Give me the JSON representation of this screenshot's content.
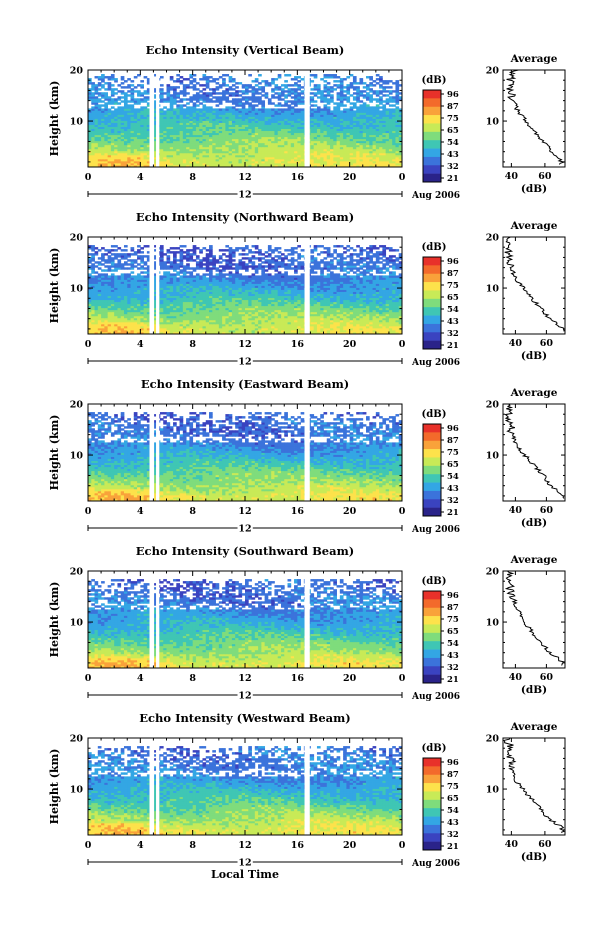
{
  "ylabel": "Height (km)",
  "xlabel": "Local Time",
  "date_label": "Aug 2006",
  "colorbar": {
    "unit_label": "(dB)",
    "tick_labels": [
      "96",
      "87",
      "75",
      "65",
      "54",
      "43",
      "32",
      "21"
    ],
    "colors": [
      "#e8312a",
      "#f36a2b",
      "#f9a23a",
      "#fde24b",
      "#c8ea57",
      "#7fdc7c",
      "#3fc6b4",
      "#33a6e4",
      "#3b73db",
      "#3a43c0",
      "#2a2389"
    ]
  },
  "profile_title": "Average",
  "profile_xlabel": "(dB)",
  "x_ticks": [
    "0",
    "4",
    "8",
    "12",
    "16",
    "20",
    "0"
  ],
  "y_ticks": [
    "20",
    "10"
  ],
  "panels": [
    {
      "title": "Echo Intensity (Vertical Beam)",
      "day_label": "12",
      "profile_ticks": [
        "40",
        "60"
      ]
    },
    {
      "title": "Echo Intensity (Northward Beam)",
      "day_label": "12",
      "profile_ticks": [
        "40",
        "60"
      ]
    },
    {
      "title": "Echo Intensity (Eastward Beam)",
      "day_label": "12",
      "profile_ticks": [
        "40",
        "60"
      ]
    },
    {
      "title": "Echo Intensity (Southward Beam)",
      "day_label": "12",
      "profile_ticks": [
        "40",
        "60"
      ]
    },
    {
      "title": "Echo Intensity (Westward Beam)",
      "day_label": "12",
      "profile_ticks": [
        "40",
        "60"
      ]
    }
  ],
  "chart_data": [
    {
      "type": "heatmap",
      "title": "Echo Intensity (Vertical Beam)",
      "ylabel": "Height (km)",
      "x_range_hours": [
        0,
        24
      ],
      "ylim": [
        1,
        20
      ],
      "colorbar_range_db": [
        21,
        96
      ],
      "profile": {
        "title": "Average",
        "xlabel": "(dB)",
        "xlim": [
          35,
          72
        ],
        "heights_km": [
          2,
          3,
          4,
          6,
          8,
          10,
          12,
          14,
          16,
          18,
          20
        ],
        "values_db": [
          70,
          68,
          64,
          59,
          54,
          49,
          44,
          41,
          40,
          40,
          41
        ]
      }
    },
    {
      "type": "heatmap",
      "title": "Echo Intensity (Northward Beam)",
      "ylabel": "Height (km)",
      "x_range_hours": [
        0,
        24
      ],
      "ylim": [
        1,
        20
      ],
      "colorbar_range_db": [
        21,
        96
      ],
      "profile": {
        "title": "Average",
        "xlabel": "(dB)",
        "xlim": [
          32,
          72
        ],
        "heights_km": [
          2,
          3,
          4,
          6,
          8,
          10,
          12,
          14,
          16,
          18,
          20
        ],
        "values_db": [
          70,
          67,
          62,
          57,
          50,
          45,
          40,
          37,
          36,
          35,
          35
        ]
      }
    },
    {
      "type": "heatmap",
      "title": "Echo Intensity (Eastward Beam)",
      "ylabel": "Height (km)",
      "x_range_hours": [
        0,
        24
      ],
      "ylim": [
        1,
        20
      ],
      "colorbar_range_db": [
        21,
        96
      ],
      "profile": {
        "title": "Average",
        "xlabel": "(dB)",
        "xlim": [
          32,
          72
        ],
        "heights_km": [
          2,
          3,
          4,
          6,
          8,
          10,
          12,
          14,
          16,
          18,
          20
        ],
        "values_db": [
          71,
          67,
          63,
          58,
          52,
          46,
          41,
          38,
          37,
          36,
          35
        ]
      }
    },
    {
      "type": "heatmap",
      "title": "Echo Intensity (Southward Beam)",
      "ylabel": "Height (km)",
      "x_range_hours": [
        0,
        24
      ],
      "ylim": [
        1,
        20
      ],
      "colorbar_range_db": [
        21,
        96
      ],
      "profile": {
        "title": "Average",
        "xlabel": "(dB)",
        "xlim": [
          32,
          72
        ],
        "heights_km": [
          2,
          3,
          4,
          6,
          8,
          10,
          12,
          14,
          16,
          18,
          20
        ],
        "values_db": [
          71,
          67,
          62,
          57,
          51,
          46,
          42,
          39,
          37,
          36,
          36
        ]
      }
    },
    {
      "type": "heatmap",
      "title": "Echo Intensity (Westward Beam)",
      "ylabel": "Height (km)",
      "x_range_hours": [
        0,
        24
      ],
      "ylim": [
        1,
        20
      ],
      "colorbar_range_db": [
        21,
        96
      ],
      "profile": {
        "title": "Average",
        "xlabel": "(dB)",
        "xlim": [
          35,
          72
        ],
        "heights_km": [
          2,
          3,
          4,
          6,
          8,
          10,
          12,
          14,
          16,
          18,
          20
        ],
        "values_db": [
          71,
          68,
          63,
          58,
          52,
          47,
          42,
          40,
          39,
          38,
          38
        ]
      }
    }
  ]
}
